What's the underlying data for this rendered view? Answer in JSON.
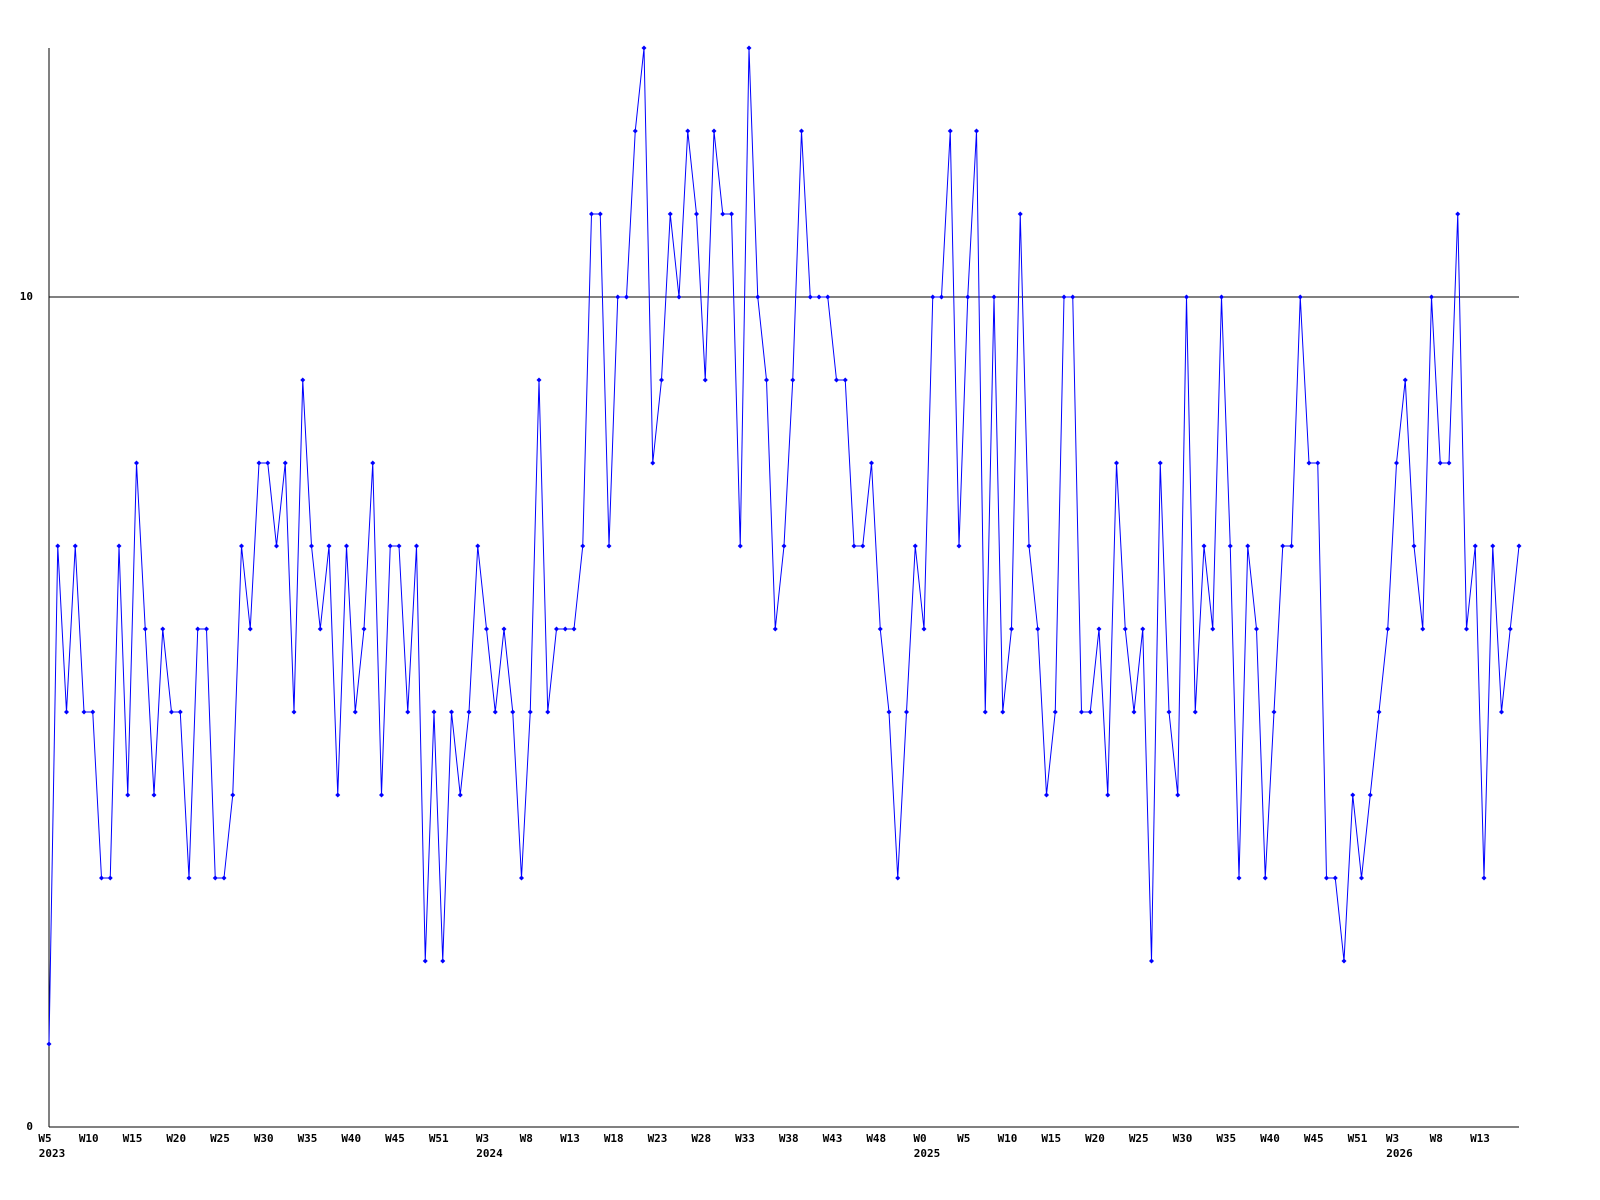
{
  "chart_data": {
    "type": "line",
    "color": "#0000ff",
    "axis_color": "#000000",
    "ylim": [
      0,
      13
    ],
    "yticks": [
      0,
      10
    ],
    "grid": true,
    "categories": [
      "W5",
      null,
      null,
      null,
      null,
      "W10",
      null,
      null,
      null,
      null,
      "W15",
      null,
      null,
      null,
      null,
      "W20",
      null,
      null,
      null,
      null,
      "W25",
      null,
      null,
      null,
      null,
      "W30",
      null,
      null,
      null,
      null,
      "W35",
      null,
      null,
      null,
      null,
      "W40",
      null,
      null,
      null,
      null,
      "W45",
      null,
      null,
      null,
      null,
      "W51",
      null,
      null,
      null,
      null,
      "W3",
      null,
      null,
      null,
      null,
      "W8",
      null,
      null,
      null,
      null,
      "W13",
      null,
      null,
      null,
      null,
      "W18",
      null,
      null,
      null,
      null,
      "W23",
      null,
      null,
      null,
      null,
      "W28",
      null,
      null,
      null,
      null,
      "W33",
      null,
      null,
      null,
      null,
      "W38",
      null,
      null,
      null,
      null,
      "W43",
      null,
      null,
      null,
      null,
      "W48",
      null,
      null,
      null,
      null,
      "W0",
      null,
      null,
      null,
      null,
      "W5",
      null,
      null,
      null,
      null,
      "W10",
      null,
      null,
      null,
      null,
      "W15",
      null,
      null,
      null,
      null,
      "W20",
      null,
      null,
      null,
      null,
      "W25",
      null,
      null,
      null,
      null,
      "W30",
      null,
      null,
      null,
      null,
      "W35",
      null,
      null,
      null,
      null,
      "W40",
      null,
      null,
      null,
      null,
      "W45",
      null,
      null,
      null,
      null,
      "W51",
      null,
      null,
      null,
      "W3",
      null,
      null,
      null,
      null,
      "W8",
      null,
      null,
      null,
      null,
      "W13",
      null,
      null,
      null,
      null
    ],
    "years": [
      "2023",
      null,
      null,
      null,
      null,
      null,
      null,
      null,
      null,
      null,
      null,
      null,
      null,
      null,
      null,
      null,
      null,
      null,
      null,
      null,
      null,
      null,
      null,
      null,
      null,
      null,
      null,
      null,
      null,
      null,
      null,
      null,
      null,
      null,
      null,
      null,
      null,
      null,
      null,
      null,
      null,
      null,
      null,
      null,
      null,
      null,
      null,
      null,
      null,
      null,
      "2024",
      null,
      null,
      null,
      null,
      null,
      null,
      null,
      null,
      null,
      null,
      null,
      null,
      null,
      null,
      null,
      null,
      null,
      null,
      null,
      null,
      null,
      null,
      null,
      null,
      null,
      null,
      null,
      null,
      null,
      null,
      null,
      null,
      null,
      null,
      null,
      null,
      null,
      null,
      null,
      null,
      null,
      null,
      null,
      null,
      null,
      null,
      null,
      null,
      null,
      "2025",
      null,
      null,
      null,
      null,
      null,
      null,
      null,
      null,
      null,
      null,
      null,
      null,
      null,
      null,
      null,
      null,
      null,
      null,
      null,
      null,
      null,
      null,
      null,
      null,
      null,
      null,
      null,
      null,
      null,
      null,
      null,
      null,
      null,
      null,
      null,
      null,
      null,
      null,
      null,
      null,
      null,
      null,
      null,
      null,
      null,
      null,
      null,
      null,
      null,
      null,
      null,
      null,
      null,
      "2026",
      null,
      null,
      null,
      null,
      null,
      null,
      null,
      null,
      null,
      null,
      null,
      null,
      null,
      null
    ],
    "values": [
      1,
      7,
      5,
      7,
      5,
      5,
      3,
      3,
      7,
      4,
      8,
      6,
      4,
      6,
      5,
      5,
      3,
      6,
      6,
      3,
      3,
      4,
      7,
      6,
      8,
      8,
      7,
      8,
      5,
      9,
      7,
      6,
      7,
      4,
      7,
      5,
      6,
      8,
      4,
      7,
      7,
      5,
      7,
      2,
      5,
      2,
      5,
      4,
      5,
      7,
      6,
      5,
      6,
      5,
      3,
      5,
      9,
      5,
      6,
      6,
      6,
      7,
      11,
      11,
      7,
      10,
      10,
      12,
      13,
      8,
      9,
      11,
      10,
      12,
      11,
      9,
      12,
      11,
      11,
      7,
      13,
      10,
      9,
      6,
      7,
      9,
      12,
      10,
      10,
      10,
      9,
      9,
      7,
      7,
      8,
      6,
      5,
      3,
      5,
      7,
      6,
      10,
      10,
      12,
      7,
      10,
      12,
      5,
      10,
      5,
      6,
      11,
      7,
      6,
      4,
      5,
      10,
      10,
      5,
      5,
      6,
      4,
      8,
      6,
      5,
      6,
      2,
      8,
      5,
      4,
      10,
      5,
      7,
      6,
      10,
      7,
      3,
      7,
      6,
      3,
      5,
      7,
      7,
      10,
      8,
      8,
      3,
      3,
      2,
      4,
      3,
      4,
      5,
      6,
      8,
      9,
      7,
      6,
      10,
      8,
      8,
      11,
      6,
      7,
      3,
      7,
      5,
      6,
      7
    ]
  }
}
